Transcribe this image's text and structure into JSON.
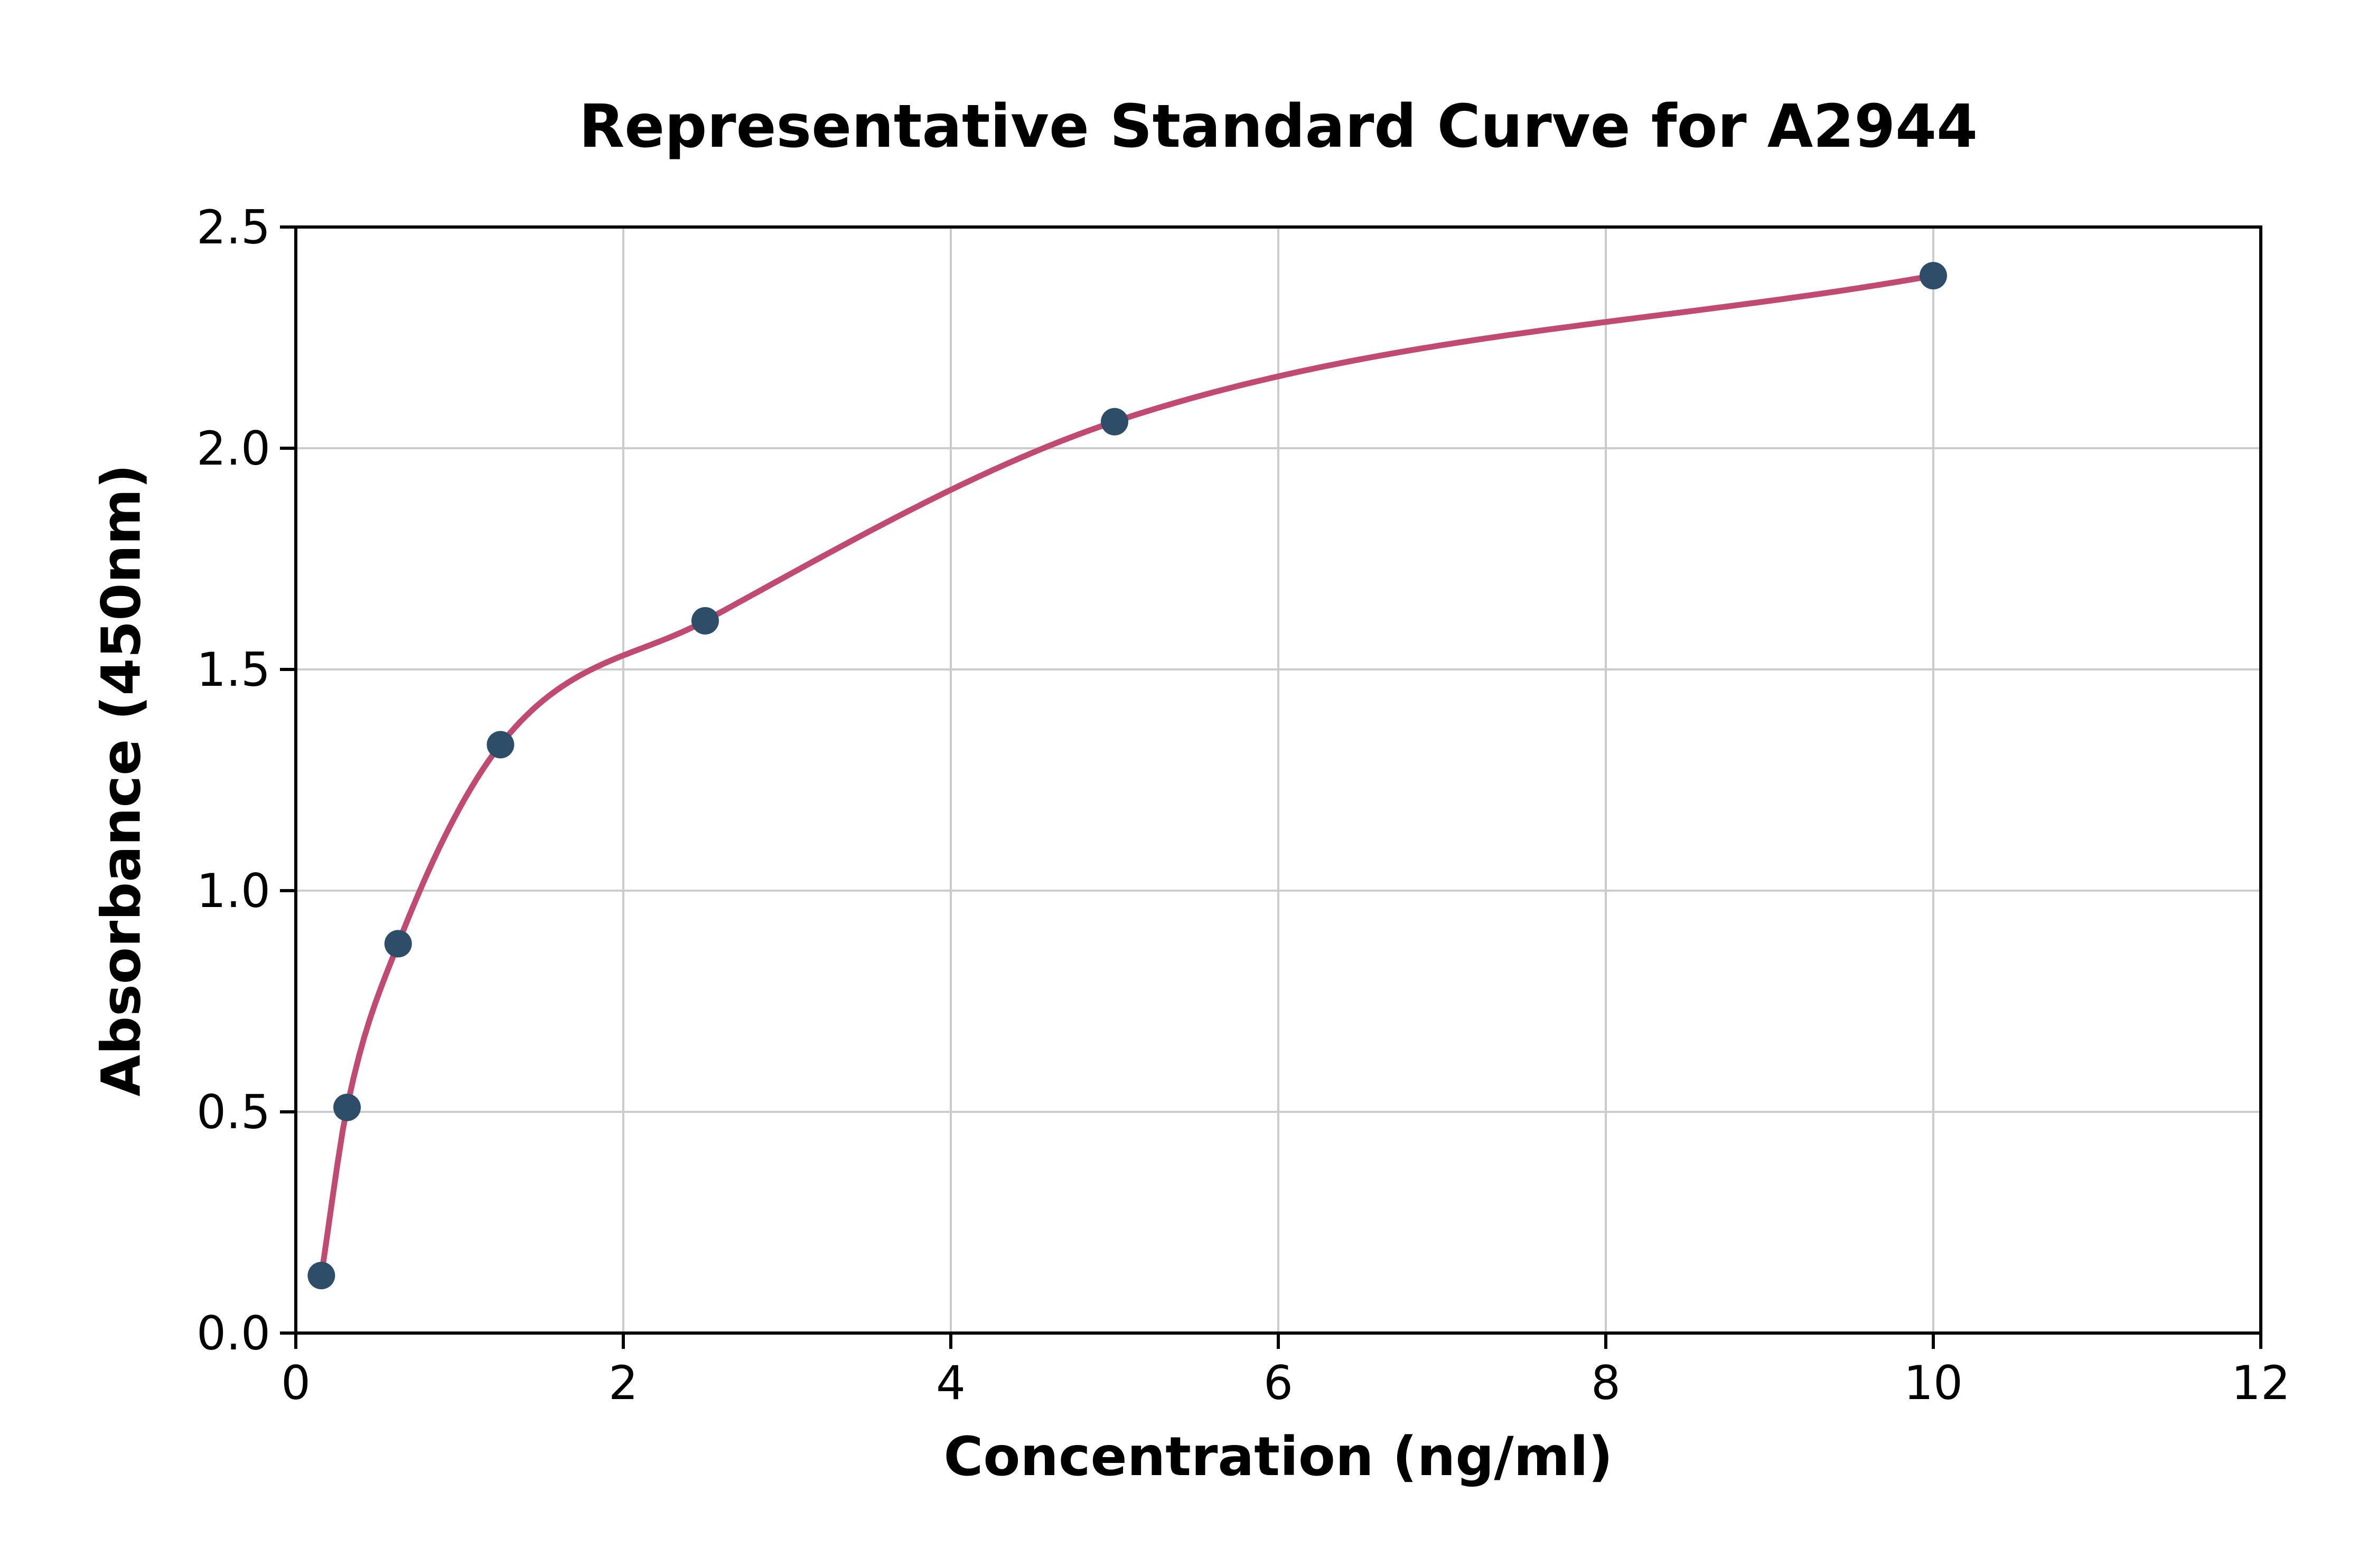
{
  "title": "Representative Standard Curve for A2944",
  "chart_data": {
    "type": "scatter",
    "title": "Representative Standard Curve for A2944",
    "xlabel": "Concentration (ng/ml)",
    "ylabel": "Absorbance (450nm)",
    "xlim": [
      0,
      12
    ],
    "ylim": [
      0,
      2.5
    ],
    "x_ticks": [
      0,
      2,
      4,
      6,
      8,
      10,
      12
    ],
    "x_tick_labels": [
      "0",
      "2",
      "4",
      "6",
      "8",
      "10",
      "12"
    ],
    "y_ticks": [
      0.0,
      0.5,
      1.0,
      1.5,
      2.0,
      2.5
    ],
    "y_tick_labels": [
      "0.0",
      "0.5",
      "1.0",
      "1.5",
      "2.0",
      "2.5"
    ],
    "grid": true,
    "legend": "none",
    "series": [
      {
        "name": "standards",
        "x": [
          0.156,
          0.313,
          0.625,
          1.25,
          2.5,
          5,
          10
        ],
        "y": [
          0.13,
          0.51,
          0.88,
          1.33,
          1.61,
          2.06,
          2.39
        ]
      }
    ],
    "fit_curve": "smooth monotone curve through the standard points",
    "colors": {
      "point": "#2e4d69",
      "curve": "#c04a72",
      "grid": "#cccccc",
      "axis": "#000000",
      "background": "#ffffff"
    }
  }
}
